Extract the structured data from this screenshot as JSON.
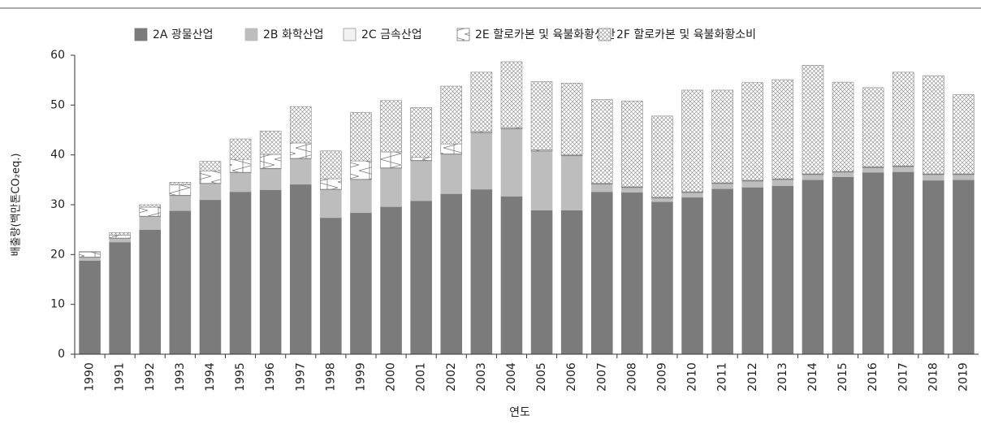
{
  "chart_data": {
    "type": "stacked_bar",
    "x_label": "연도",
    "y_label": "배출량(백만톤CO₂eq.)",
    "categories": [
      "1990",
      "1991",
      "1992",
      "1993",
      "1994",
      "1995",
      "1996",
      "1997",
      "1998",
      "1999",
      "2000",
      "2001",
      "2002",
      "2003",
      "2004",
      "2005",
      "2006",
      "2007",
      "2008",
      "2009",
      "2010",
      "2011",
      "2012",
      "2013",
      "2014",
      "2015",
      "2016",
      "2017",
      "2018",
      "2019"
    ],
    "ylim": [
      0,
      60
    ],
    "yticks": [
      0,
      10,
      20,
      30,
      40,
      50,
      60
    ],
    "series": [
      {
        "name": "2A 광물산업",
        "color": "#7b7b7b",
        "values": [
          18.8,
          22.5,
          25.0,
          28.8,
          31.0,
          32.6,
          33.0,
          34.1,
          27.4,
          28.4,
          29.6,
          30.8,
          32.2,
          33.1,
          31.7,
          28.9,
          28.9,
          32.6,
          32.5,
          30.6,
          31.5,
          33.2,
          33.5,
          33.8,
          35.0,
          35.6,
          36.5,
          36.6,
          34.9,
          35.0
        ]
      },
      {
        "name": "2B 화학산업",
        "color": "#bdbdbd",
        "values": [
          0.6,
          0.7,
          2.6,
          3.0,
          3.2,
          3.8,
          4.2,
          5.1,
          5.6,
          6.6,
          7.7,
          8.0,
          7.9,
          11.3,
          13.5,
          11.8,
          10.9,
          1.5,
          0.9,
          0.7,
          0.9,
          1.0,
          1.2,
          1.2,
          1.0,
          0.9,
          0.9,
          1.0,
          1.1,
          1.0
        ]
      },
      {
        "name": "2C 금속산업",
        "color": "#f2f2f2",
        "values": [
          0.1,
          0.1,
          0.1,
          0.1,
          0.1,
          0.1,
          0.1,
          0.1,
          0.1,
          0.1,
          0.1,
          0.1,
          0.1,
          0.1,
          0.1,
          0.1,
          0.1,
          0.1,
          0.1,
          0.1,
          0.1,
          0.1,
          0.1,
          0.1,
          0.1,
          0.1,
          0.1,
          0.1,
          0.1,
          0.1
        ]
      },
      {
        "name": "2E 할로카본 및 육불화황생산",
        "color": "#777777",
        "hatch": "cross",
        "values": [
          1.0,
          0.6,
          1.8,
          2.1,
          2.5,
          2.6,
          2.8,
          3.1,
          2.1,
          3.7,
          3.2,
          0.6,
          2.0,
          0.2,
          0.2,
          0.2,
          0.1,
          0.1,
          0.1,
          0.1,
          0.1,
          0.1,
          0.1,
          0.1,
          0.1,
          0.1,
          0.1,
          0.1,
          0.1,
          0.1
        ]
      },
      {
        "name": "2F 할로카본 및 육불화황소비",
        "color": "#888888",
        "hatch": "crosshatch",
        "values": [
          0.1,
          0.5,
          0.5,
          0.5,
          1.9,
          4.1,
          4.7,
          7.3,
          5.6,
          9.7,
          10.3,
          10.0,
          11.6,
          11.9,
          13.2,
          13.7,
          14.4,
          16.8,
          17.2,
          16.3,
          20.4,
          18.6,
          19.6,
          19.9,
          21.8,
          17.9,
          15.9,
          18.8,
          19.7,
          15.9
        ]
      }
    ]
  }
}
